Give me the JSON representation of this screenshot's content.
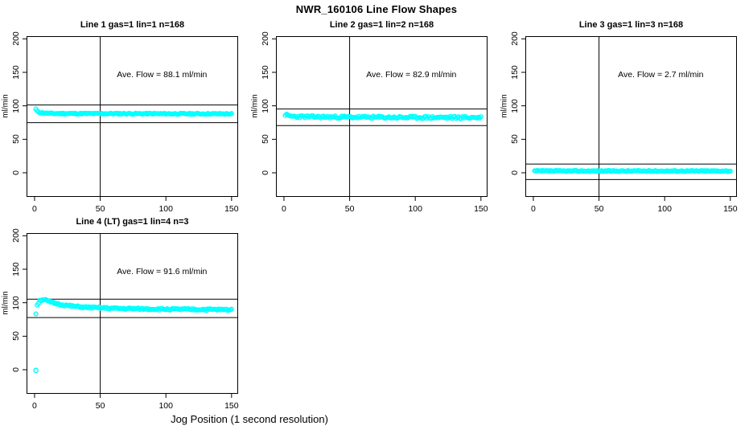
{
  "title": "NWR_160106  Line Flow Shapes",
  "x_axis_label": "Jog Position (1 second resolution)",
  "colors": {
    "points": "#00ffff",
    "lines": "#000000",
    "background": "#ffffff"
  },
  "axes": {
    "y_label": "ml/min",
    "x_ticks": [
      0,
      50,
      100,
      150
    ],
    "y_ticks": [
      0,
      50,
      100,
      150,
      200
    ],
    "x_range": [
      -6.1,
      155.0
    ],
    "y_range": [
      -36.0,
      204.0
    ],
    "grid": false
  },
  "chart_data": [
    {
      "type": "scatter",
      "title": "Line 1 gas=1 lin=1 n=168",
      "annotation": "Ave. Flow =  88.1  ml/min",
      "ave_flow": 88.1,
      "n": 168,
      "x_start": 1,
      "x_end": 150,
      "x_step": 1,
      "vline_x": 50,
      "ref_lines": {
        "upper": 101.3,
        "lower": 74.9
      },
      "profile": [
        [
          1,
          95
        ],
        [
          2,
          92
        ],
        [
          4,
          90
        ],
        [
          8,
          89
        ],
        [
          15,
          88.5
        ],
        [
          150,
          88
        ]
      ],
      "noise": 0.8,
      "seed": 11,
      "outliers": []
    },
    {
      "type": "scatter",
      "title": "Line 2 gas=1 lin=2 n=168",
      "annotation": "Ave. Flow =  82.9  ml/min",
      "ave_flow": 82.9,
      "n": 168,
      "x_start": 1,
      "x_end": 150,
      "x_step": 1,
      "vline_x": 50,
      "ref_lines": {
        "upper": 95.3,
        "lower": 70.5
      },
      "profile": [
        [
          1,
          87
        ],
        [
          3,
          85
        ],
        [
          8,
          84
        ],
        [
          20,
          83.5
        ],
        [
          80,
          82.7
        ],
        [
          150,
          82.5
        ]
      ],
      "noise": 1.8,
      "seed": 23,
      "outliers": []
    },
    {
      "type": "scatter",
      "title": "Line 3 gas=1 lin=3 n=168",
      "annotation": "Ave. Flow =  2.7  ml/min",
      "ave_flow": 2.7,
      "n": 168,
      "x_start": 1,
      "x_end": 150,
      "x_step": 1,
      "vline_x": 50,
      "ref_lines": {
        "upper": 13.0,
        "lower": -10.0
      },
      "profile": [
        [
          1,
          2.7
        ],
        [
          150,
          2.7
        ]
      ],
      "noise": 0.8,
      "seed": 37,
      "outliers": []
    },
    {
      "type": "scatter",
      "title": "Line 4 (LT) gas=1 lin=4 n=3",
      "annotation": "Ave. Flow =  91.6  ml/min",
      "ave_flow": 91.6,
      "n": 3,
      "x_start": 1,
      "x_end": 150,
      "x_step": 1,
      "vline_x": 50,
      "ref_lines": {
        "upper": 105.3,
        "lower": 77.9
      },
      "profile": [
        [
          1,
          84
        ],
        [
          2,
          97
        ],
        [
          4,
          103
        ],
        [
          6,
          105
        ],
        [
          8,
          104
        ],
        [
          12,
          101
        ],
        [
          16,
          99
        ],
        [
          22,
          96.5
        ],
        [
          30,
          94.5
        ],
        [
          40,
          93
        ],
        [
          60,
          91.5
        ],
        [
          90,
          90.5
        ],
        [
          120,
          90
        ],
        [
          150,
          89.5
        ]
      ],
      "noise": 1.3,
      "seed": 51,
      "outliers": [
        [
          1,
          -1
        ]
      ]
    }
  ]
}
